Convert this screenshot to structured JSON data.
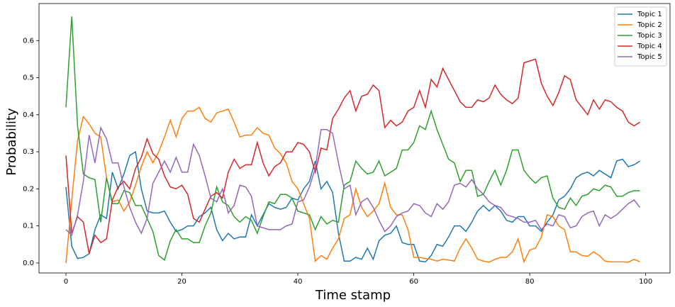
{
  "chart_data": {
    "type": "line",
    "x_label": "Time stamp",
    "y_label": "Probability",
    "x": [
      0,
      1,
      2,
      3,
      4,
      5,
      6,
      7,
      8,
      9,
      10,
      11,
      12,
      13,
      14,
      15,
      16,
      17,
      18,
      19,
      20,
      21,
      22,
      23,
      24,
      25,
      26,
      27,
      28,
      29,
      30,
      31,
      32,
      33,
      34,
      35,
      36,
      37,
      38,
      39,
      40,
      41,
      42,
      43,
      44,
      45,
      46,
      47,
      48,
      49,
      50,
      51,
      52,
      53,
      54,
      55,
      56,
      57,
      58,
      59,
      60,
      61,
      62,
      63,
      64,
      65,
      66,
      67,
      68,
      69,
      70,
      71,
      72,
      73,
      74,
      75,
      76,
      77,
      78,
      79,
      80,
      81,
      82,
      83,
      84,
      85,
      86,
      87,
      88,
      89,
      90,
      91,
      92,
      93,
      94,
      95,
      96,
      97,
      98,
      99
    ],
    "series": [
      {
        "name": "Topic 1",
        "color": "#1f77b4",
        "values": [
          0.205,
          0.045,
          0.012,
          0.015,
          0.025,
          0.09,
          0.13,
          0.12,
          0.245,
          0.2,
          0.24,
          0.29,
          0.3,
          0.2,
          0.14,
          0.135,
          0.135,
          0.14,
          0.11,
          0.085,
          0.09,
          0.1,
          0.1,
          0.125,
          0.135,
          0.15,
          0.09,
          0.06,
          0.08,
          0.065,
          0.07,
          0.07,
          0.13,
          0.1,
          0.13,
          0.16,
          0.15,
          0.145,
          0.15,
          0.175,
          0.17,
          0.2,
          0.22,
          0.275,
          0.2,
          0.22,
          0.19,
          0.08,
          0.005,
          0.005,
          0.015,
          0.01,
          0.04,
          0.01,
          0.06,
          0.075,
          0.08,
          0.1,
          0.055,
          0.05,
          0.05,
          0.005,
          0.003,
          0.02,
          0.05,
          0.045,
          0.07,
          0.1,
          0.1,
          0.085,
          0.11,
          0.14,
          0.155,
          0.14,
          0.155,
          0.14,
          0.115,
          0.11,
          0.125,
          0.125,
          0.1,
          0.1,
          0.085,
          0.11,
          0.13,
          0.17,
          0.18,
          0.2,
          0.23,
          0.24,
          0.245,
          0.235,
          0.25,
          0.24,
          0.23,
          0.275,
          0.28,
          0.26,
          0.265,
          0.275
        ]
      },
      {
        "name": "Topic 2",
        "color": "#ff7f0e",
        "values": [
          0.0,
          0.17,
          0.33,
          0.395,
          0.375,
          0.35,
          0.34,
          0.23,
          0.165,
          0.17,
          0.14,
          0.165,
          0.21,
          0.26,
          0.3,
          0.27,
          0.3,
          0.34,
          0.385,
          0.34,
          0.39,
          0.41,
          0.41,
          0.42,
          0.39,
          0.38,
          0.405,
          0.41,
          0.415,
          0.38,
          0.34,
          0.345,
          0.345,
          0.365,
          0.35,
          0.345,
          0.31,
          0.295,
          0.27,
          0.22,
          0.2,
          0.16,
          0.12,
          0.005,
          0.02,
          0.01,
          0.04,
          0.065,
          0.12,
          0.13,
          0.2,
          0.15,
          0.125,
          0.14,
          0.16,
          0.215,
          0.15,
          0.13,
          0.13,
          0.09,
          0.015,
          0.015,
          0.012,
          0.01,
          0.005,
          0.01,
          0.008,
          0.005,
          0.04,
          0.065,
          0.04,
          0.01,
          0.005,
          0.002,
          0.01,
          0.015,
          0.015,
          0.03,
          0.065,
          0.003,
          0.035,
          0.04,
          0.07,
          0.13,
          0.125,
          0.1,
          0.09,
          0.03,
          0.03,
          0.02,
          0.018,
          0.03,
          0.02,
          0.005,
          0.003,
          0.003,
          0.003,
          0.002,
          0.01,
          0.003
        ]
      },
      {
        "name": "Topic 3",
        "color": "#2ca02c",
        "values": [
          0.42,
          0.665,
          0.37,
          0.24,
          0.23,
          0.225,
          0.11,
          0.23,
          0.16,
          0.16,
          0.195,
          0.19,
          0.155,
          0.155,
          0.12,
          0.085,
          0.02,
          0.008,
          0.06,
          0.09,
          0.065,
          0.065,
          0.055,
          0.055,
          0.1,
          0.135,
          0.205,
          0.165,
          0.155,
          0.125,
          0.11,
          0.125,
          0.115,
          0.08,
          0.125,
          0.165,
          0.16,
          0.185,
          0.185,
          0.175,
          0.14,
          0.135,
          0.13,
          0.09,
          0.125,
          0.105,
          0.115,
          0.11,
          0.21,
          0.22,
          0.275,
          0.255,
          0.24,
          0.245,
          0.275,
          0.235,
          0.245,
          0.255,
          0.305,
          0.305,
          0.325,
          0.37,
          0.36,
          0.41,
          0.36,
          0.32,
          0.28,
          0.27,
          0.22,
          0.25,
          0.25,
          0.18,
          0.185,
          0.22,
          0.25,
          0.21,
          0.25,
          0.305,
          0.305,
          0.25,
          0.23,
          0.215,
          0.23,
          0.235,
          0.175,
          0.15,
          0.145,
          0.175,
          0.155,
          0.18,
          0.185,
          0.2,
          0.195,
          0.21,
          0.205,
          0.18,
          0.18,
          0.19,
          0.195,
          0.195
        ]
      },
      {
        "name": "Topic 4",
        "color": "#d62728",
        "values": [
          0.29,
          0.08,
          0.125,
          0.11,
          0.025,
          0.075,
          0.055,
          0.065,
          0.17,
          0.205,
          0.22,
          0.2,
          0.255,
          0.285,
          0.335,
          0.295,
          0.28,
          0.235,
          0.205,
          0.2,
          0.21,
          0.185,
          0.12,
          0.11,
          0.145,
          0.18,
          0.19,
          0.175,
          0.245,
          0.28,
          0.255,
          0.265,
          0.265,
          0.325,
          0.27,
          0.235,
          0.26,
          0.27,
          0.3,
          0.3,
          0.325,
          0.32,
          0.3,
          0.245,
          0.31,
          0.305,
          0.39,
          0.415,
          0.445,
          0.465,
          0.41,
          0.45,
          0.455,
          0.48,
          0.465,
          0.365,
          0.385,
          0.37,
          0.38,
          0.41,
          0.42,
          0.465,
          0.42,
          0.495,
          0.475,
          0.525,
          0.495,
          0.465,
          0.435,
          0.42,
          0.42,
          0.44,
          0.435,
          0.445,
          0.48,
          0.455,
          0.44,
          0.43,
          0.445,
          0.54,
          0.545,
          0.55,
          0.485,
          0.45,
          0.425,
          0.46,
          0.505,
          0.495,
          0.44,
          0.42,
          0.4,
          0.44,
          0.415,
          0.44,
          0.435,
          0.42,
          0.41,
          0.38,
          0.37,
          0.38
        ]
      },
      {
        "name": "Topic 5",
        "color": "#9467bd",
        "values": [
          0.09,
          0.075,
          0.13,
          0.22,
          0.345,
          0.27,
          0.365,
          0.335,
          0.27,
          0.27,
          0.205,
          0.15,
          0.11,
          0.08,
          0.12,
          0.215,
          0.245,
          0.275,
          0.245,
          0.285,
          0.245,
          0.245,
          0.32,
          0.29,
          0.235,
          0.175,
          0.165,
          0.2,
          0.135,
          0.155,
          0.21,
          0.205,
          0.18,
          0.1,
          0.095,
          0.09,
          0.09,
          0.09,
          0.1,
          0.105,
          0.165,
          0.17,
          0.205,
          0.255,
          0.36,
          0.36,
          0.35,
          0.27,
          0.2,
          0.21,
          0.13,
          0.165,
          0.175,
          0.15,
          0.115,
          0.085,
          0.1,
          0.125,
          0.135,
          0.14,
          0.16,
          0.155,
          0.135,
          0.125,
          0.16,
          0.145,
          0.165,
          0.21,
          0.215,
          0.205,
          0.225,
          0.2,
          0.185,
          0.165,
          0.155,
          0.15,
          0.13,
          0.125,
          0.12,
          0.11,
          0.11,
          0.115,
          0.09,
          0.105,
          0.1,
          0.13,
          0.125,
          0.095,
          0.1,
          0.125,
          0.135,
          0.14,
          0.1,
          0.13,
          0.12,
          0.13,
          0.145,
          0.16,
          0.17,
          0.15
        ]
      }
    ],
    "xlim": [
      -4.65,
      104.2
    ],
    "ylim": [
      -0.027,
      0.7
    ],
    "xticks": [
      0,
      20,
      40,
      60,
      80,
      100
    ],
    "yticks": [
      {
        "value": 0,
        "label": "0.0"
      },
      {
        "value": 0.1,
        "label": "0.1"
      },
      {
        "value": 0.2,
        "label": "0.2"
      },
      {
        "value": 0.3,
        "label": "0.3"
      },
      {
        "value": 0.4,
        "label": "0.4"
      },
      {
        "value": 0.5,
        "label": "0.5"
      },
      {
        "value": 0.6,
        "label": "0.6"
      }
    ],
    "legend": "upper right",
    "grid": false
  }
}
